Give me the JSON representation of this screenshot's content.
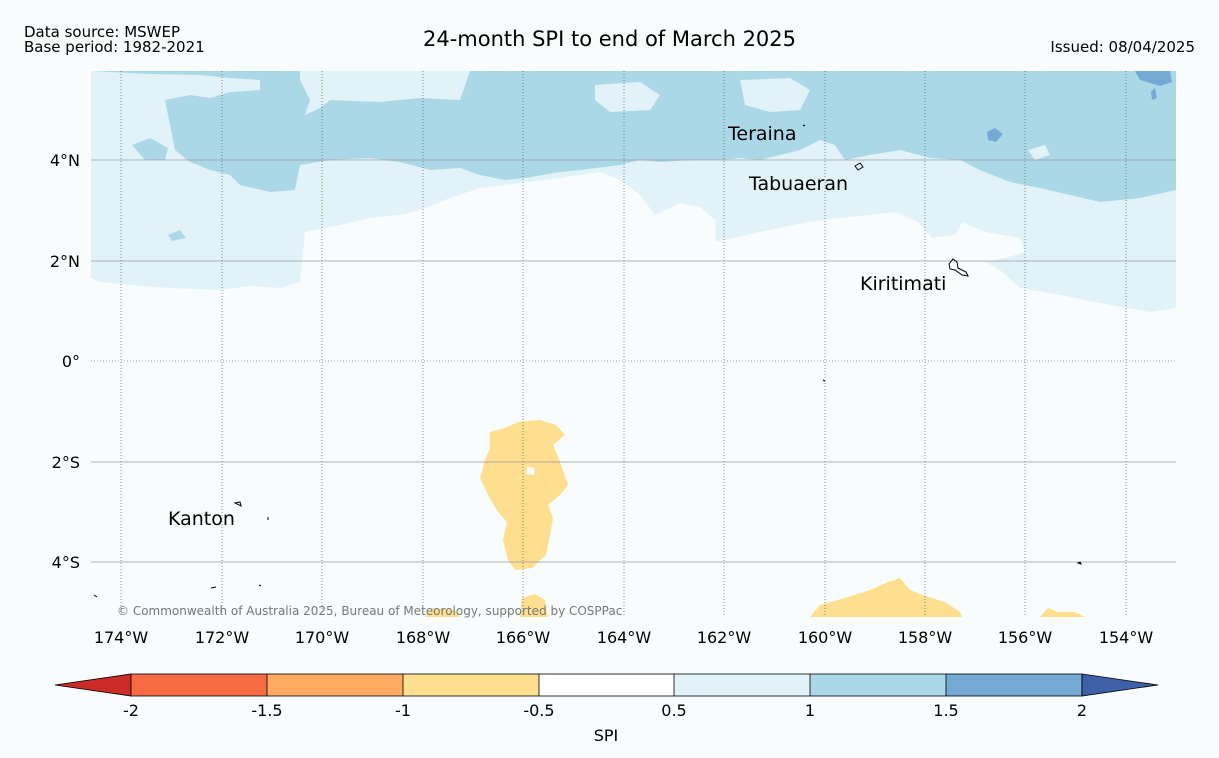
{
  "header": {
    "title": "24-month SPI to end of March 2025",
    "source": "Data source: MSWEP",
    "base_period": "Base period: 1982-2021",
    "issued": "Issued: 08/04/2025"
  },
  "map": {
    "longitude_labels": [
      "174°W",
      "172°W",
      "170°W",
      "168°W",
      "166°W",
      "164°W",
      "162°W",
      "160°W",
      "158°W",
      "156°W",
      "154°W"
    ],
    "latitude_labels": [
      "4°N",
      "2°N",
      "0°",
      "2°S",
      "4°S"
    ],
    "places": [
      {
        "name": "Teraina"
      },
      {
        "name": "Tabuaeran"
      },
      {
        "name": "Kiritimati"
      },
      {
        "name": "Kanton"
      }
    ],
    "copyright": "© Commonwealth of Australia 2025, Bureau of Meteorology, supported by COSPPac",
    "colors": {
      "spi_0_5_to_1": "#e1f3f9",
      "spi_1_to_1_5": "#abd8e7",
      "spi_1_5_to_2": "#74aad3",
      "spi_minus1_to_minus0_5": "#fddf8f",
      "background": "#f8fcfd"
    }
  },
  "colorbar": {
    "label": "SPI",
    "ticks": [
      "-2",
      "-1.5",
      "-1",
      "-0.5",
      "0.5",
      "1",
      "1.5",
      "2"
    ],
    "colors": [
      "#cd2a2a",
      "#f76b44",
      "#fdab60",
      "#fddf8f",
      "#ffffff",
      "#e1f3f9",
      "#abd8e7",
      "#74aad3",
      "#3d60a6"
    ]
  }
}
